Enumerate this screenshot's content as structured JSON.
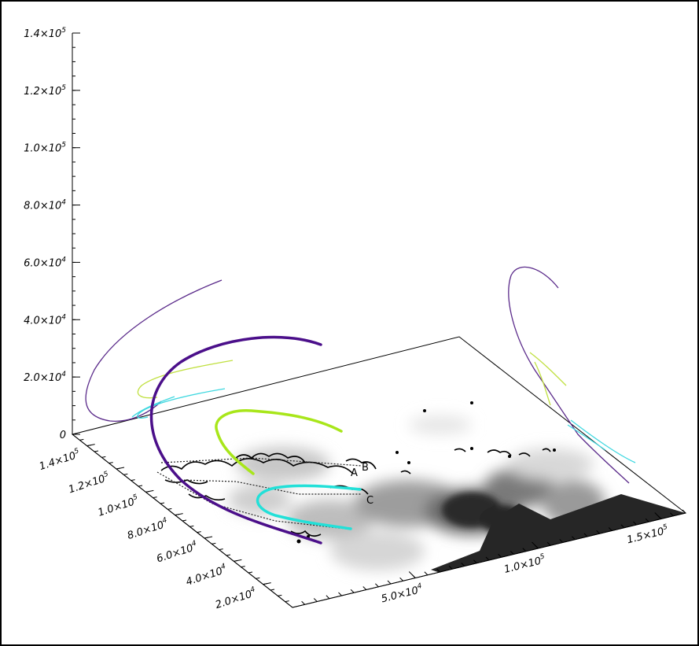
{
  "chart_data": {
    "type": "3d-field-line-plot",
    "title": "",
    "xlabel": "",
    "ylabel": "",
    "zlabel": "",
    "z_axis": {
      "range": [
        0,
        140000
      ],
      "ticks": [
        {
          "value": 0,
          "label": "0"
        },
        {
          "value": 20000,
          "label": "2.0×10",
          "exp": "4"
        },
        {
          "value": 40000,
          "label": "4.0×10",
          "exp": "4"
        },
        {
          "value": 60000,
          "label": "6.0×10",
          "exp": "4"
        },
        {
          "value": 80000,
          "label": "8.0×10",
          "exp": "4"
        },
        {
          "value": 100000,
          "label": "1.0×10",
          "exp": "5"
        },
        {
          "value": 120000,
          "label": "1.2×10",
          "exp": "5"
        },
        {
          "value": 140000,
          "label": "1.4×10",
          "exp": "5"
        }
      ]
    },
    "y_axis": {
      "range": [
        0,
        150000
      ],
      "ticks": [
        {
          "value": 20000,
          "label": "2.0×10",
          "exp": "4"
        },
        {
          "value": 40000,
          "label": "4.0×10",
          "exp": "4"
        },
        {
          "value": 60000,
          "label": "6.0×10",
          "exp": "4"
        },
        {
          "value": 80000,
          "label": "8.0×10",
          "exp": "4"
        },
        {
          "value": 100000,
          "label": "1.0×10",
          "exp": "5"
        },
        {
          "value": 120000,
          "label": "1.2×10",
          "exp": "5"
        },
        {
          "value": 140000,
          "label": "1.4×10",
          "exp": "5"
        }
      ]
    },
    "x_axis": {
      "range": [
        0,
        160000
      ],
      "ticks": [
        {
          "value": 50000,
          "label": "5.0×10",
          "exp": "4"
        },
        {
          "value": 100000,
          "label": "1.0×10",
          "exp": "5"
        },
        {
          "value": 150000,
          "label": "1.5×10",
          "exp": "5"
        }
      ]
    },
    "base_plane": "grayscale magnetogram with black contours and dotted polarity lines",
    "series": [
      {
        "color": "#4b0f8a",
        "style": "thick field line"
      },
      {
        "color": "#a8e61a",
        "style": "thick field line"
      },
      {
        "color": "#22e0d8",
        "style": "thick field line"
      },
      {
        "color": "#5a2a8a",
        "style": "thin projection"
      },
      {
        "color": "#c0e040",
        "style": "thin projection"
      },
      {
        "color": "#40d8e0",
        "style": "thin projection"
      }
    ],
    "annotations": [
      "A",
      "B",
      "C"
    ]
  }
}
